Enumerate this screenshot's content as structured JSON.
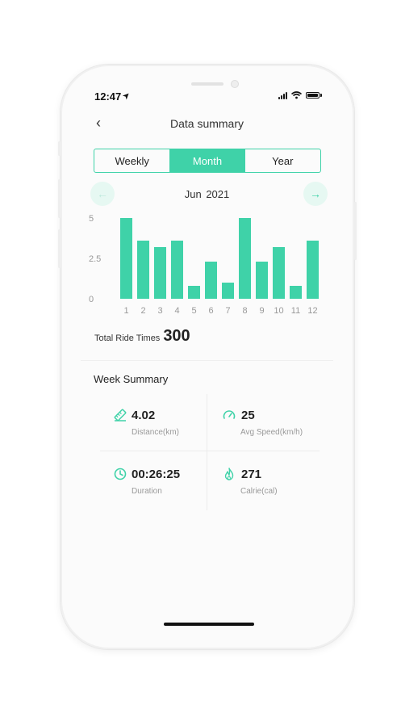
{
  "status": {
    "time": "12:47",
    "location_glyph": "➤"
  },
  "header": {
    "back_glyph": "‹",
    "title": "Data summary"
  },
  "tabs": [
    {
      "label": "Weekly",
      "active": false
    },
    {
      "label": "Month",
      "active": true
    },
    {
      "label": "Year",
      "active": false
    }
  ],
  "period": {
    "label": "Jun  2021",
    "prev_glyph": "←",
    "next_glyph": "→"
  },
  "chart_data": {
    "type": "bar",
    "categories": [
      "1",
      "2",
      "3",
      "4",
      "5",
      "6",
      "7",
      "8",
      "9",
      "10",
      "11",
      "12"
    ],
    "values": [
      5,
      3.6,
      3.2,
      3.6,
      0.8,
      2.3,
      1.0,
      5,
      2.3,
      3.2,
      0.8,
      3.6
    ],
    "yticks": [
      "5",
      "2.5",
      "0"
    ],
    "ylim": [
      0,
      5
    ],
    "color": "#3fd2a8"
  },
  "total": {
    "label": "Total Ride Times",
    "value": "300"
  },
  "week_summary": {
    "title": "Week Summary",
    "stats": [
      {
        "icon": "ruler-icon",
        "value": "4.02",
        "label": "Distance(km)"
      },
      {
        "icon": "speedometer-icon",
        "value": "25",
        "label": "Avg Speed(km/h)"
      },
      {
        "icon": "clock-icon",
        "value": "00:26:25",
        "label": "Duration"
      },
      {
        "icon": "flame-icon",
        "value": "271",
        "label": "Calrie(cal)"
      }
    ]
  },
  "colors": {
    "accent": "#3fd2a8",
    "accent_light": "#e6f8f2"
  }
}
